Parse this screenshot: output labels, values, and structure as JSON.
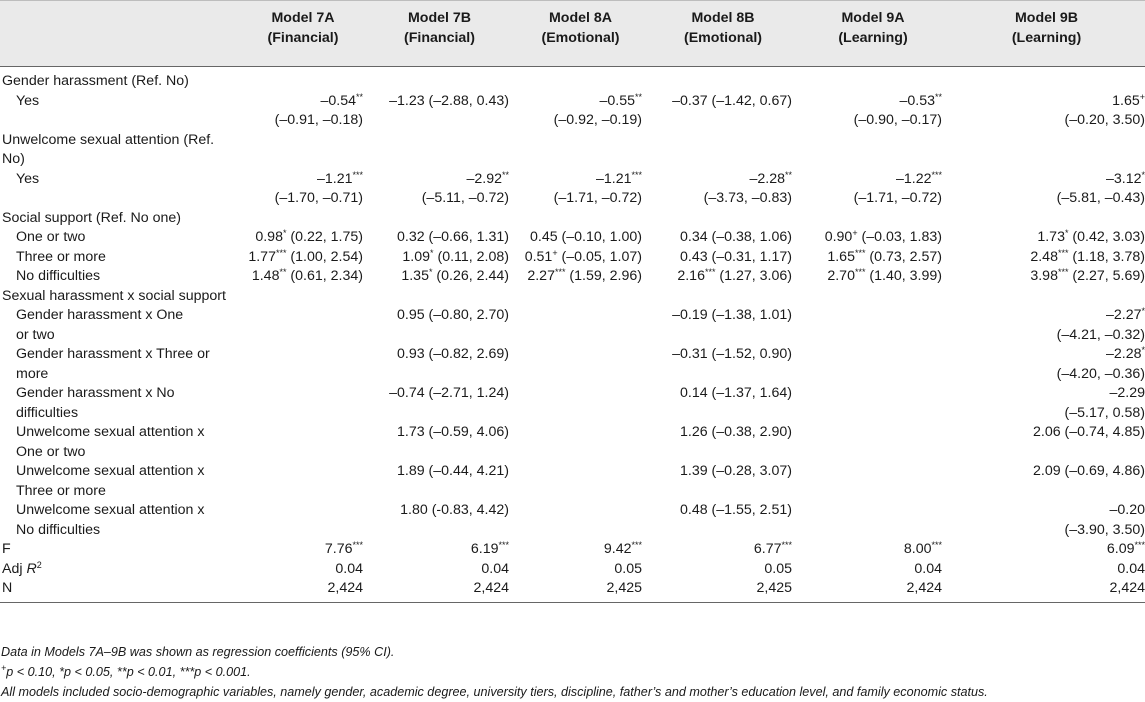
{
  "columns": [
    {
      "line1": "",
      "line2": ""
    },
    {
      "line1": "Model 7A",
      "line2": "(Financial)"
    },
    {
      "line1": "Model 7B",
      "line2": "(Financial)"
    },
    {
      "line1": "Model 8A",
      "line2": "(Emotional)"
    },
    {
      "line1": "Model 8B",
      "line2": "(Emotional)"
    },
    {
      "line1": "Model 9A",
      "line2": "(Learning)"
    },
    {
      "line1": "Model 9B",
      "line2": "(Learning)"
    }
  ],
  "rows": [
    {
      "type": "section",
      "label": "Gender harassment (Ref. No)"
    },
    {
      "type": "data",
      "label": "Yes",
      "cells": [
        "–0.54**",
        "–1.23 (–2.88, 0.43)",
        "–0.55**",
        "–0.37 (–1.42, 0.67)",
        "–0.53**",
        "1.65+"
      ]
    },
    {
      "type": "cont",
      "label": "",
      "cells": [
        "(–0.91, –0.18)",
        "",
        "(–0.92, –0.19)",
        "",
        "(–0.90, –0.17)",
        "(–0.20, 3.50)"
      ]
    },
    {
      "type": "section",
      "label": "Unwelcome sexual attention (Ref. No)"
    },
    {
      "type": "data",
      "label": "Yes",
      "cells": [
        "–1.21***",
        "–2.92**",
        "–1.21***",
        "–2.28**",
        "–1.22***",
        "–3.12*"
      ]
    },
    {
      "type": "cont",
      "label": "",
      "cells": [
        "(–1.70, –0.71)",
        "(–5.11, –0.72)",
        "(–1.71, –0.72)",
        "(–3.73, –0.83)",
        "(–1.71, –0.72)",
        "(–5.81, –0.43)"
      ]
    },
    {
      "type": "section",
      "label": "Social support (Ref. No one)"
    },
    {
      "type": "data",
      "label": "One or two",
      "cells": [
        "0.98* (0.22, 1.75)",
        "0.32 (–0.66, 1.31)",
        "0.45 (–0.10, 1.00)",
        "0.34 (–0.38, 1.06)",
        "0.90+ (–0.03, 1.83)",
        "1.73* (0.42, 3.03)"
      ]
    },
    {
      "type": "data",
      "label": "Three or more",
      "cells": [
        "1.77*** (1.00, 2.54)",
        "1.09* (0.11, 2.08)",
        "0.51+ (–0.05, 1.07)",
        "0.43 (–0.31, 1.17)",
        "1.65*** (0.73, 2.57)",
        "2.48*** (1.18, 3.78)"
      ]
    },
    {
      "type": "data",
      "label": "No difficulties",
      "cells": [
        "1.48** (0.61, 2.34)",
        "1.35* (0.26, 2.44)",
        "2.27*** (1.59, 2.96)",
        "2.16*** (1.27, 3.06)",
        "2.70*** (1.40, 3.99)",
        "3.98*** (2.27, 5.69)"
      ]
    },
    {
      "type": "section",
      "label": "Sexual harassment x social support"
    },
    {
      "type": "data",
      "label": "Gender harassment x One",
      "cells": [
        "",
        "0.95 (–0.80, 2.70)",
        "",
        "–0.19 (–1.38, 1.01)",
        "",
        "–2.27*"
      ]
    },
    {
      "type": "cont",
      "label": "or two",
      "cells": [
        "",
        "",
        "",
        "",
        "",
        "(–4.21, –0.32)"
      ]
    },
    {
      "type": "data",
      "label": "Gender harassment x Three or",
      "cells": [
        "",
        "0.93 (–0.82, 2.69)",
        "",
        "–0.31 (–1.52, 0.90)",
        "",
        "–2.28*"
      ]
    },
    {
      "type": "cont",
      "label": "more",
      "cells": [
        "",
        "",
        "",
        "",
        "",
        "(–4.20, –0.36)"
      ]
    },
    {
      "type": "data",
      "label": "Gender harassment x No",
      "cells": [
        "",
        "–0.74 (–2.71, 1.24)",
        "",
        "0.14 (–1.37, 1.64)",
        "",
        "–2.29"
      ]
    },
    {
      "type": "cont",
      "label": "difficulties",
      "cells": [
        "",
        "",
        "",
        "",
        "",
        "(–5.17, 0.58)"
      ]
    },
    {
      "type": "data",
      "label": "Unwelcome sexual attention x",
      "cells": [
        "",
        "1.73 (–0.59, 4.06)",
        "",
        "1.26 (–0.38, 2.90)",
        "",
        "2.06 (–0.74, 4.85)"
      ]
    },
    {
      "type": "cont",
      "label": "One or two",
      "cells": [
        "",
        "",
        "",
        "",
        "",
        ""
      ]
    },
    {
      "type": "data",
      "label": "Unwelcome sexual attention x",
      "cells": [
        "",
        "1.89 (–0.44, 4.21)",
        "",
        "1.39 (–0.28, 3.07)",
        "",
        "2.09 (–0.69, 4.86)"
      ]
    },
    {
      "type": "cont",
      "label": "Three or more",
      "cells": [
        "",
        "",
        "",
        "",
        "",
        ""
      ]
    },
    {
      "type": "data",
      "label": "Unwelcome sexual attention x",
      "cells": [
        "",
        "1.80 (-0.83, 4.42)",
        "",
        "0.48 (–1.55, 2.51)",
        "",
        "–0.20"
      ]
    },
    {
      "type": "cont",
      "label": "No difficulties",
      "cells": [
        "",
        "",
        "",
        "",
        "",
        "(–3.90, 3.50)"
      ]
    },
    {
      "type": "stat",
      "label": "F",
      "cells": [
        "7.76***",
        "6.19***",
        "9.42***",
        "6.77***",
        "8.00***",
        "6.09***"
      ]
    },
    {
      "type": "stat",
      "label": "Adj R²",
      "cells": [
        "0.04",
        "0.04",
        "0.05",
        "0.05",
        "0.04",
        "0.04"
      ]
    },
    {
      "type": "stat",
      "label": "N",
      "cells": [
        "2,424",
        "2,424",
        "2,425",
        "2,425",
        "2,424",
        "2,424"
      ]
    }
  ],
  "notes": [
    "Data in Models 7A–9B was shown as regression coefficients (95% CI).",
    "+p < 0.10, *p < 0.05, **p < 0.01, ***p < 0.001.",
    "All models included socio-demographic variables, namely gender, academic degree, university tiers, discipline, father’s and mother’s education level, and family economic status."
  ]
}
